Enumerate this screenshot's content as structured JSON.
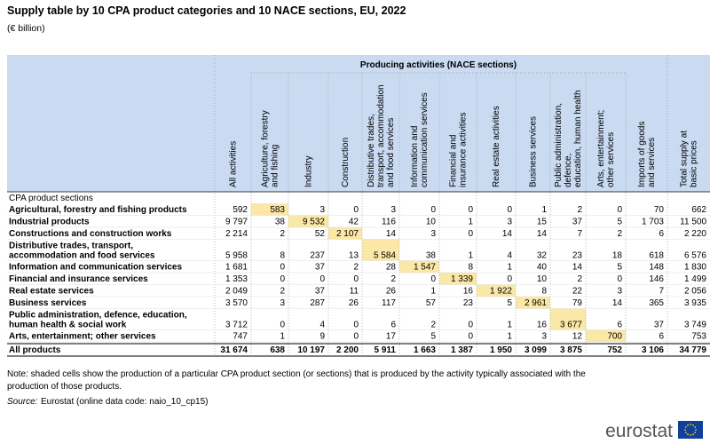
{
  "header": {
    "title": "Supply table by 10 CPA product categories and 10 NACE sections, EU, 2022",
    "subtitle": "(€ billion)"
  },
  "table": {
    "group_header": "Producing activities (NACE sections)",
    "columns": [
      [
        "All activities"
      ],
      [
        "Agriculture, forestry",
        "and fishing"
      ],
      [
        "Industry"
      ],
      [
        "Construction"
      ],
      [
        "Distributive trades,",
        "transport, accommodation",
        "and food services"
      ],
      [
        "Information and",
        "communication services"
      ],
      [
        "Financial and",
        "insurance activities"
      ],
      [
        "Real estate activities"
      ],
      [
        "Business services"
      ],
      [
        "Public administration,",
        "defence,",
        "education, human health"
      ],
      [
        "Arts, entertainment;",
        "other services"
      ],
      [
        "Imports of goods",
        "and services"
      ],
      [
        "Total supply at",
        "basic prices"
      ]
    ],
    "section_label": "CPA product sections",
    "rows": [
      {
        "label": [
          "Agricultural, forestry and fishing products"
        ],
        "values": [
          "592",
          "583",
          "3",
          "0",
          "3",
          "0",
          "0",
          "0",
          "1",
          "2",
          "0",
          "70",
          "662"
        ]
      },
      {
        "label": [
          "Industrial products"
        ],
        "values": [
          "9 797",
          "38",
          "9 532",
          "42",
          "116",
          "10",
          "1",
          "3",
          "15",
          "37",
          "5",
          "1 703",
          "11 500"
        ]
      },
      {
        "label": [
          "Constructions and construction works"
        ],
        "values": [
          "2 214",
          "2",
          "52",
          "2 107",
          "14",
          "3",
          "0",
          "14",
          "14",
          "7",
          "2",
          "6",
          "2 220"
        ]
      },
      {
        "label": [
          "Distributive trades, transport,",
          "accommodation and food services"
        ],
        "values": [
          "5 958",
          "8",
          "237",
          "13",
          "5 584",
          "38",
          "1",
          "4",
          "32",
          "23",
          "18",
          "618",
          "6 576"
        ]
      },
      {
        "label": [
          "Information and communication services"
        ],
        "values": [
          "1 681",
          "0",
          "37",
          "2",
          "28",
          "1 547",
          "8",
          "1",
          "40",
          "14",
          "5",
          "148",
          "1 830"
        ]
      },
      {
        "label": [
          "Financial and insurance services"
        ],
        "values": [
          "1 353",
          "0",
          "0",
          "0",
          "2",
          "0",
          "1 339",
          "0",
          "10",
          "2",
          "0",
          "146",
          "1 499"
        ]
      },
      {
        "label": [
          "Real estate services"
        ],
        "values": [
          "2 049",
          "2",
          "37",
          "11",
          "26",
          "1",
          "16",
          "1 922",
          "8",
          "22",
          "3",
          "7",
          "2 056"
        ]
      },
      {
        "label": [
          "Business services"
        ],
        "values": [
          "3 570",
          "3",
          "287",
          "26",
          "117",
          "57",
          "23",
          "5",
          "2 961",
          "79",
          "14",
          "365",
          "3 935"
        ]
      },
      {
        "label": [
          "Public administration, defence, education,",
          "human health & social work"
        ],
        "values": [
          "3 712",
          "0",
          "4",
          "0",
          "6",
          "2",
          "0",
          "1",
          "16",
          "3 677",
          "6",
          "37",
          "3 749"
        ]
      },
      {
        "label": [
          "Arts, entertainment; other services"
        ],
        "values": [
          "747",
          "1",
          "9",
          "0",
          "17",
          "5",
          "0",
          "1",
          "3",
          "12",
          "700",
          "6",
          "753"
        ]
      }
    ],
    "total": {
      "label": "All products",
      "values": [
        "31 674",
        "638",
        "10 197",
        "2 200",
        "5 911",
        "1 663",
        "1 387",
        "1 950",
        "3 099",
        "3 875",
        "752",
        "3 106",
        "34 779"
      ]
    }
  },
  "note": [
    "Note: shaded cells show the production of a particular CPA product section (or sections) that is produced by the activity typically associated with the",
    "production of those products."
  ],
  "source": {
    "prefix": "Source:",
    "text": "Eurostat (online data code: naio_10_cp15)"
  },
  "logo": {
    "text": "eurostat"
  }
}
